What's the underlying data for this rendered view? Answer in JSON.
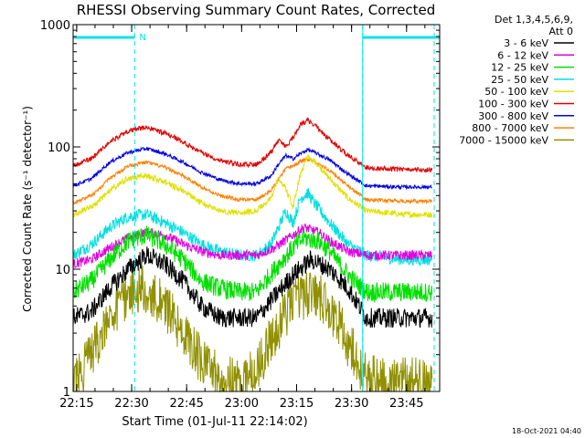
{
  "chart_data": {
    "type": "line",
    "title": "RHESSI Observing Summary Count Rates, Corrected",
    "xlabel": "Start Time (01-Jul-11 22:14:02)",
    "ylabel": "Corrected Count Rate (s⁻¹ detector⁻¹)",
    "yscale": "log",
    "ylim": [
      1,
      1000
    ],
    "y_ticks": [
      "1",
      "10",
      "100",
      "1000"
    ],
    "x_ticks": [
      "22:15",
      "22:30",
      "22:45",
      "23:00",
      "23:15",
      "23:30",
      "23:45"
    ],
    "x_range_minutes": [
      0,
      100
    ],
    "x_tick_minutes": [
      0.97,
      15.97,
      30.97,
      45.97,
      60.97,
      75.97,
      90.97
    ],
    "legend_header": [
      "Det 1,3,4,5,6,9,",
      "Att 0"
    ],
    "legend_position": "right",
    "timestamp": "18-Oct-2021 04:40",
    "annotations": {
      "flag_label": "N",
      "flag_color": "#00e5ee",
      "night_bars": [
        [
          0,
          16.8
        ],
        [
          79,
          100
        ]
      ],
      "dashed_lines_minutes": [
        16.8,
        79,
        98.5
      ]
    },
    "series": [
      {
        "name": "3 - 6 keV",
        "color": "#000000",
        "noise": 0.08,
        "points": [
          [
            0,
            4
          ],
          [
            5,
            4.5
          ],
          [
            10,
            7
          ],
          [
            15,
            10
          ],
          [
            20,
            13
          ],
          [
            25,
            11
          ],
          [
            30,
            8
          ],
          [
            35,
            5
          ],
          [
            40,
            4
          ],
          [
            45,
            4
          ],
          [
            50,
            4
          ],
          [
            55,
            6
          ],
          [
            60,
            9
          ],
          [
            65,
            12
          ],
          [
            70,
            10
          ],
          [
            75,
            7
          ],
          [
            80,
            4
          ],
          [
            90,
            4
          ],
          [
            98,
            4
          ]
        ]
      },
      {
        "name": "6 - 12 keV",
        "color": "#e000e0",
        "noise": 0.04,
        "points": [
          [
            0,
            11
          ],
          [
            5,
            12
          ],
          [
            10,
            15
          ],
          [
            15,
            18
          ],
          [
            20,
            20
          ],
          [
            25,
            19
          ],
          [
            30,
            16
          ],
          [
            35,
            14
          ],
          [
            40,
            13
          ],
          [
            45,
            13
          ],
          [
            50,
            13
          ],
          [
            55,
            15
          ],
          [
            60,
            19
          ],
          [
            63,
            22
          ],
          [
            67,
            20
          ],
          [
            70,
            17
          ],
          [
            75,
            14
          ],
          [
            80,
            13
          ],
          [
            90,
            13
          ],
          [
            98,
            13
          ]
        ]
      },
      {
        "name": "12 - 25 keV",
        "color": "#00e000",
        "noise": 0.08,
        "points": [
          [
            0,
            6.5
          ],
          [
            5,
            8
          ],
          [
            10,
            12
          ],
          [
            15,
            17
          ],
          [
            20,
            19
          ],
          [
            25,
            16
          ],
          [
            30,
            12
          ],
          [
            35,
            8
          ],
          [
            40,
            7
          ],
          [
            45,
            6.5
          ],
          [
            50,
            6.5
          ],
          [
            55,
            10
          ],
          [
            60,
            15
          ],
          [
            63,
            18
          ],
          [
            67,
            17
          ],
          [
            70,
            14
          ],
          [
            75,
            9
          ],
          [
            80,
            6.5
          ],
          [
            90,
            6.5
          ],
          [
            98,
            6.5
          ]
        ]
      },
      {
        "name": "25 - 50 keV",
        "color": "#00e0e0",
        "noise": 0.05,
        "points": [
          [
            0,
            13
          ],
          [
            5,
            16
          ],
          [
            10,
            22
          ],
          [
            15,
            27
          ],
          [
            20,
            28
          ],
          [
            25,
            24
          ],
          [
            30,
            20
          ],
          [
            35,
            16
          ],
          [
            40,
            14
          ],
          [
            45,
            13
          ],
          [
            50,
            13
          ],
          [
            54,
            16
          ],
          [
            56,
            22
          ],
          [
            58,
            30
          ],
          [
            60,
            24
          ],
          [
            62,
            38
          ],
          [
            64,
            42
          ],
          [
            66,
            34
          ],
          [
            70,
            24
          ],
          [
            75,
            16
          ],
          [
            80,
            13
          ],
          [
            90,
            12
          ],
          [
            98,
            12
          ]
        ]
      },
      {
        "name": "50 - 100 keV",
        "color": "#e0e000",
        "noise": 0.025,
        "points": [
          [
            0,
            28
          ],
          [
            5,
            32
          ],
          [
            10,
            44
          ],
          [
            15,
            55
          ],
          [
            20,
            58
          ],
          [
            25,
            52
          ],
          [
            30,
            44
          ],
          [
            35,
            35
          ],
          [
            40,
            30
          ],
          [
            45,
            29
          ],
          [
            50,
            30
          ],
          [
            54,
            38
          ],
          [
            56,
            55
          ],
          [
            58,
            46
          ],
          [
            60,
            32
          ],
          [
            62,
            60
          ],
          [
            64,
            85
          ],
          [
            66,
            75
          ],
          [
            70,
            55
          ],
          [
            75,
            38
          ],
          [
            80,
            30
          ],
          [
            90,
            28
          ],
          [
            98,
            28
          ]
        ]
      },
      {
        "name": "100 - 300 keV",
        "color": "#e00000",
        "noise": 0.02,
        "points": [
          [
            0,
            70
          ],
          [
            5,
            80
          ],
          [
            10,
            110
          ],
          [
            15,
            135
          ],
          [
            20,
            145
          ],
          [
            25,
            130
          ],
          [
            30,
            110
          ],
          [
            35,
            90
          ],
          [
            40,
            78
          ],
          [
            45,
            72
          ],
          [
            50,
            72
          ],
          [
            54,
            90
          ],
          [
            56,
            115
          ],
          [
            58,
            100
          ],
          [
            60,
            120
          ],
          [
            62,
            150
          ],
          [
            64,
            165
          ],
          [
            66,
            150
          ],
          [
            70,
            115
          ],
          [
            75,
            85
          ],
          [
            80,
            68
          ],
          [
            90,
            65
          ],
          [
            98,
            65
          ]
        ]
      },
      {
        "name": "300 - 800 keV",
        "color": "#0000e0",
        "noise": 0.015,
        "points": [
          [
            0,
            48
          ],
          [
            5,
            55
          ],
          [
            10,
            75
          ],
          [
            15,
            90
          ],
          [
            20,
            97
          ],
          [
            25,
            88
          ],
          [
            30,
            75
          ],
          [
            35,
            62
          ],
          [
            40,
            54
          ],
          [
            45,
            50
          ],
          [
            50,
            50
          ],
          [
            54,
            58
          ],
          [
            56,
            72
          ],
          [
            58,
            85
          ],
          [
            60,
            80
          ],
          [
            62,
            88
          ],
          [
            64,
            95
          ],
          [
            66,
            90
          ],
          [
            70,
            78
          ],
          [
            75,
            60
          ],
          [
            80,
            48
          ],
          [
            90,
            47
          ],
          [
            98,
            47
          ]
        ]
      },
      {
        "name": "800 - 7000 keV",
        "color": "#ff8000",
        "noise": 0.015,
        "points": [
          [
            0,
            35
          ],
          [
            5,
            40
          ],
          [
            10,
            55
          ],
          [
            15,
            70
          ],
          [
            20,
            75
          ],
          [
            25,
            68
          ],
          [
            30,
            58
          ],
          [
            35,
            47
          ],
          [
            40,
            40
          ],
          [
            45,
            37
          ],
          [
            50,
            37
          ],
          [
            54,
            44
          ],
          [
            56,
            54
          ],
          [
            58,
            66
          ],
          [
            60,
            70
          ],
          [
            62,
            76
          ],
          [
            64,
            80
          ],
          [
            66,
            76
          ],
          [
            70,
            64
          ],
          [
            75,
            48
          ],
          [
            80,
            37
          ],
          [
            90,
            36
          ],
          [
            98,
            36
          ]
        ]
      },
      {
        "name": "7000 - 15000 keV",
        "color": "#909000",
        "noise": 0.2,
        "points": [
          [
            0,
            1.2
          ],
          [
            5,
            2
          ],
          [
            10,
            4
          ],
          [
            15,
            6.5
          ],
          [
            20,
            7
          ],
          [
            25,
            5
          ],
          [
            30,
            3
          ],
          [
            35,
            1.8
          ],
          [
            40,
            1.3
          ],
          [
            45,
            1.2
          ],
          [
            50,
            1.5
          ],
          [
            55,
            3
          ],
          [
            60,
            5.5
          ],
          [
            65,
            6.5
          ],
          [
            70,
            5
          ],
          [
            75,
            2.5
          ],
          [
            80,
            1.3
          ],
          [
            90,
            1.2
          ],
          [
            98,
            1.2
          ]
        ]
      }
    ]
  }
}
